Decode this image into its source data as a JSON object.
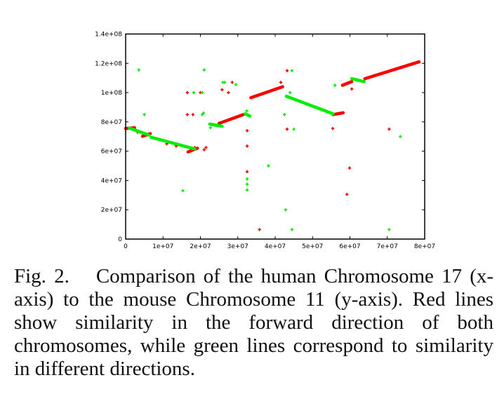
{
  "chart_data": {
    "type": "scatter",
    "title": "",
    "xlabel": "",
    "ylabel": "",
    "xlim": [
      0,
      80000000
    ],
    "ylim": [
      0,
      140000000
    ],
    "grid": false,
    "legend": "none",
    "x_ticks": [
      {
        "value": 0,
        "label": "0"
      },
      {
        "value": 10000000,
        "label": "1e+07"
      },
      {
        "value": 20000000,
        "label": "2e+07"
      },
      {
        "value": 30000000,
        "label": "3e+07"
      },
      {
        "value": 40000000,
        "label": "4e+07"
      },
      {
        "value": 50000000,
        "label": "5e+07"
      },
      {
        "value": 60000000,
        "label": "6e+07"
      },
      {
        "value": 70000000,
        "label": "7e+07"
      },
      {
        "value": 80000000,
        "label": "8e+07"
      }
    ],
    "y_ticks": [
      {
        "value": 0,
        "label": "0"
      },
      {
        "value": 20000000,
        "label": "2e+07"
      },
      {
        "value": 40000000,
        "label": "4e+07"
      },
      {
        "value": 60000000,
        "label": "6e+07"
      },
      {
        "value": 80000000,
        "label": "8e+07"
      },
      {
        "value": 100000000,
        "label": "1e+08"
      },
      {
        "value": 120000000,
        "label": "1.2e+08"
      },
      {
        "value": 140000000,
        "label": "1.4e+08"
      }
    ],
    "series": [
      {
        "name": "forward (red)",
        "color": "#ff0000",
        "segments": [
          {
            "x": [
              0,
              2400000
            ],
            "y": [
              75500000,
              76000000
            ]
          },
          {
            "x": [
              4500000,
              6600000
            ],
            "y": [
              70200000,
              72000000
            ]
          },
          {
            "x": [
              16700000,
              19200000
            ],
            "y": [
              59500000,
              62000000
            ]
          },
          {
            "x": [
              25000000,
              31500000
            ],
            "y": [
              79000000,
              85000000
            ]
          },
          {
            "x": [
              33500000,
              42000000
            ],
            "y": [
              96500000,
              104000000
            ]
          },
          {
            "x": [
              55500000,
              58200000
            ],
            "y": [
              85000000,
              86200000
            ]
          },
          {
            "x": [
              58000000,
              60500000
            ],
            "y": [
              105000000,
              107500000
            ]
          },
          {
            "x": [
              64000000,
              78500000
            ],
            "y": [
              109500000,
              121000000
            ]
          }
        ],
        "points": [
          {
            "x": 3200000,
            "y": 73000000
          },
          {
            "x": 11000000,
            "y": 65000000
          },
          {
            "x": 13500000,
            "y": 63500000
          },
          {
            "x": 16500000,
            "y": 100000000
          },
          {
            "x": 16500000,
            "y": 85000000
          },
          {
            "x": 20000000,
            "y": 100000000
          },
          {
            "x": 18000000,
            "y": 85000000
          },
          {
            "x": 18500000,
            "y": 62500000
          },
          {
            "x": 21000000,
            "y": 61000000
          },
          {
            "x": 21500000,
            "y": 62500000
          },
          {
            "x": 25800000,
            "y": 102000000
          },
          {
            "x": 28500000,
            "y": 107000000
          },
          {
            "x": 27500000,
            "y": 100000000
          },
          {
            "x": 32500000,
            "y": 74000000
          },
          {
            "x": 32500000,
            "y": 63500000
          },
          {
            "x": 32500000,
            "y": 46000000
          },
          {
            "x": 35800000,
            "y": 6500000
          },
          {
            "x": 41500000,
            "y": 107000000
          },
          {
            "x": 43200000,
            "y": 115000000
          },
          {
            "x": 43200000,
            "y": 75000000
          },
          {
            "x": 55400000,
            "y": 75500000
          },
          {
            "x": 59200000,
            "y": 30500000
          },
          {
            "x": 59900000,
            "y": 48500000
          },
          {
            "x": 60500000,
            "y": 102500000
          },
          {
            "x": 70500000,
            "y": 75000000
          }
        ]
      },
      {
        "name": "reverse (green)",
        "color": "#00ee00",
        "segments": [
          {
            "x": 1000000,
            "y": 0,
            "_": 0
          },
          {
            "x": [
              1000000,
              6200000
            ],
            "y": [
              75800000,
              71000000
            ]
          },
          {
            "x": [
              6800000,
              18500000
            ],
            "y": [
              69500000,
              61500000
            ]
          },
          {
            "x": [
              22500000,
              25800000
            ],
            "y": [
              78500000,
              77000000
            ]
          },
          {
            "x": [
              32000000,
              33200000
            ],
            "y": [
              85500000,
              84000000
            ]
          },
          {
            "x": [
              43000000,
              55500000
            ],
            "y": [
              97500000,
              85500000
            ]
          },
          {
            "x": [
              60500000,
              63800000
            ],
            "y": [
              109500000,
              107500000
            ]
          }
        ],
        "points": [
          {
            "x": 3500000,
            "y": 115500000
          },
          {
            "x": 5000000,
            "y": 85000000
          },
          {
            "x": 15300000,
            "y": 33000000
          },
          {
            "x": 18200000,
            "y": 100000000
          },
          {
            "x": 20500000,
            "y": 100000000
          },
          {
            "x": 20500000,
            "y": 85000000
          },
          {
            "x": 20800000,
            "y": 86000000
          },
          {
            "x": 21000000,
            "y": 115500000
          },
          {
            "x": 22700000,
            "y": 76000000
          },
          {
            "x": 26000000,
            "y": 107000000
          },
          {
            "x": 26500000,
            "y": 107000000
          },
          {
            "x": 29500000,
            "y": 105500000
          },
          {
            "x": 32400000,
            "y": 87500000
          },
          {
            "x": 32500000,
            "y": 41000000
          },
          {
            "x": 32500000,
            "y": 37500000
          },
          {
            "x": 32500000,
            "y": 33500000
          },
          {
            "x": 38200000,
            "y": 50000000
          },
          {
            "x": 42500000,
            "y": 85000000
          },
          {
            "x": 42800000,
            "y": 20000000
          },
          {
            "x": 44500000,
            "y": 6500000
          },
          {
            "x": 44000000,
            "y": 100000000
          },
          {
            "x": 44500000,
            "y": 115000000
          },
          {
            "x": 45000000,
            "y": 75000000
          },
          {
            "x": 56000000,
            "y": 105000000
          },
          {
            "x": 70500000,
            "y": 6500000
          },
          {
            "x": 73500000,
            "y": 70000000
          }
        ]
      }
    ]
  },
  "caption": {
    "figure_label": "Fig. 2.",
    "text": "Comparison of the human Chromosome 17 (x-axis) to the mouse Chromosome 11 (y-axis). Red lines show similarity in the forward direction of both chromosomes, while green lines correspond to similarity in different directions."
  }
}
